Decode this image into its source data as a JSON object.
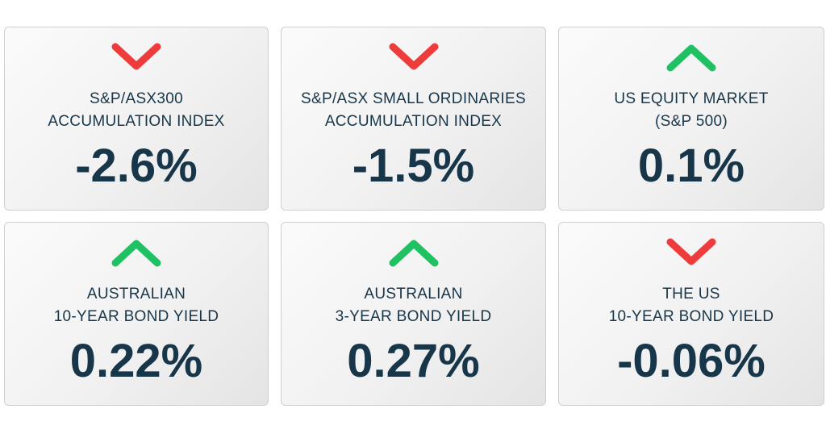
{
  "colors": {
    "down": "#ee3b3b",
    "up": "#1fc162",
    "text": "#17364a"
  },
  "cards": [
    {
      "direction": "down",
      "icon": "chevron-down-icon",
      "label_line1": "S&P/ASX300",
      "label_line2": "ACCUMULATION INDEX",
      "value": "-2.6%"
    },
    {
      "direction": "down",
      "icon": "chevron-down-icon",
      "label_line1": "S&P/ASX SMALL ORDINARIES",
      "label_line2": "ACCUMULATION INDEX",
      "value": "-1.5%"
    },
    {
      "direction": "up",
      "icon": "chevron-up-icon",
      "label_line1": "US EQUITY MARKET",
      "label_line2": "(S&P 500)",
      "value": "0.1%"
    },
    {
      "direction": "up",
      "icon": "chevron-up-icon",
      "label_line1": "AUSTRALIAN",
      "label_line2": "10-YEAR BOND YIELD",
      "value": "0.22%"
    },
    {
      "direction": "up",
      "icon": "chevron-up-icon",
      "label_line1": "AUSTRALIAN",
      "label_line2": "3-YEAR BOND YIELD",
      "value": "0.27%"
    },
    {
      "direction": "down",
      "icon": "chevron-down-icon",
      "label_line1": "THE US",
      "label_line2": "10-YEAR BOND YIELD",
      "value": "-0.06%"
    }
  ]
}
